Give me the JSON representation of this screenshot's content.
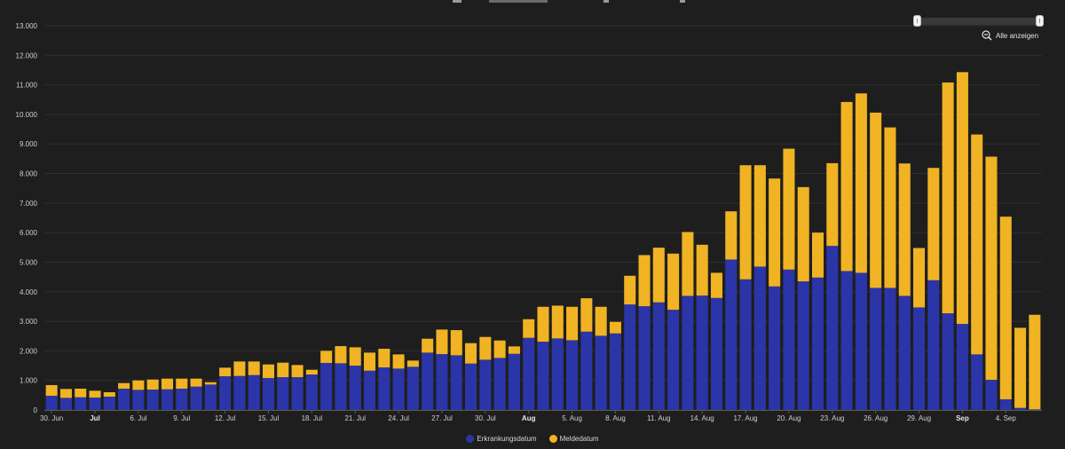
{
  "chart_data": {
    "type": "bar",
    "stacked": true,
    "series": [
      {
        "name": "Erkrankungsdatum",
        "color": "#2b35a8",
        "values": [
          480,
          410,
          430,
          420,
          450,
          720,
          680,
          690,
          700,
          720,
          790,
          860,
          1140,
          1150,
          1180,
          1080,
          1110,
          1110,
          1200,
          1590,
          1580,
          1500,
          1330,
          1440,
          1400,
          1460,
          1940,
          1890,
          1850,
          1570,
          1700,
          1760,
          1900,
          2440,
          2310,
          2420,
          2360,
          2650,
          2510,
          2590,
          3570,
          3510,
          3640,
          3390,
          3860,
          3870,
          3790,
          5090,
          4420,
          4850,
          4180,
          4750,
          4350,
          4480,
          5550,
          4700,
          4640,
          4130,
          4130,
          3860,
          3470,
          4390,
          3270,
          2910,
          1880,
          1020,
          360,
          70,
          20
        ]
      },
      {
        "name": "Meldedatum",
        "color": "#f0b323",
        "values": [
          360,
          300,
          290,
          230,
          150,
          190,
          320,
          340,
          360,
          340,
          270,
          80,
          290,
          490,
          460,
          460,
          490,
          410,
          160,
          410,
          580,
          620,
          610,
          630,
          480,
          210,
          470,
          830,
          850,
          690,
          770,
          590,
          250,
          630,
          1180,
          1110,
          1130,
          1130,
          980,
          390,
          970,
          1730,
          1850,
          1900,
          2160,
          1720,
          850,
          1630,
          3860,
          3430,
          3650,
          4090,
          3190,
          1520,
          2800,
          5720,
          6070,
          5930,
          5430,
          4480,
          2010,
          3800,
          7810,
          8520,
          7440,
          7550,
          6180,
          2710,
          3200
        ]
      }
    ],
    "n_bars": 69,
    "xtick_labels": [
      {
        "index": 0,
        "label": "30. Jun",
        "bold": false
      },
      {
        "index": 1,
        "label": "Jul",
        "bold": true
      },
      {
        "index": 2,
        "label": "6. Jul",
        "bold": false
      },
      {
        "index": 3,
        "label": "9. Jul",
        "bold": false
      },
      {
        "index": 4,
        "label": "12. Jul",
        "bold": false
      },
      {
        "index": 5,
        "label": "15. Jul",
        "bold": false
      },
      {
        "index": 6,
        "label": "18. Jul",
        "bold": false
      },
      {
        "index": 7,
        "label": "21. Jul",
        "bold": false
      },
      {
        "index": 8,
        "label": "24. Jul",
        "bold": false
      },
      {
        "index": 9,
        "label": "27. Jul",
        "bold": false
      },
      {
        "index": 10,
        "label": "30. Jul",
        "bold": false
      },
      {
        "index": 11,
        "label": "Aug",
        "bold": true
      },
      {
        "index": 12,
        "label": "5. Aug",
        "bold": false
      },
      {
        "index": 13,
        "label": "8. Aug",
        "bold": false
      },
      {
        "index": 14,
        "label": "11. Aug",
        "bold": false
      },
      {
        "index": 15,
        "label": "14. Aug",
        "bold": false
      },
      {
        "index": 16,
        "label": "17. Aug",
        "bold": false
      },
      {
        "index": 17,
        "label": "20. Aug",
        "bold": false
      },
      {
        "index": 18,
        "label": "23. Aug",
        "bold": false
      },
      {
        "index": 19,
        "label": "26. Aug",
        "bold": false
      },
      {
        "index": 20,
        "label": "29. Aug",
        "bold": false
      },
      {
        "index": 21,
        "label": "Sep",
        "bold": true
      },
      {
        "index": 22,
        "label": "4. Sep",
        "bold": false
      }
    ],
    "ylim": [
      0,
      13000
    ],
    "yticks": [
      0,
      1000,
      2000,
      3000,
      4000,
      5000,
      6000,
      7000,
      8000,
      9000,
      10000,
      11000,
      12000,
      13000
    ],
    "ytick_labels": [
      "0",
      "1.000",
      "2.000",
      "3.000",
      "4.000",
      "5.000",
      "6.000",
      "7.000",
      "8.000",
      "9.000",
      "10.000",
      "11.000",
      "12.000",
      "13.000"
    ],
    "grid": true,
    "legend_position": "bottom-center",
    "title": "",
    "xlabel": "",
    "ylabel": ""
  },
  "controls": {
    "zoom_reset_label": "Alle anzeigen"
  },
  "theme": {
    "background": "#1e1e1e",
    "grid": "#2f2f2f"
  }
}
